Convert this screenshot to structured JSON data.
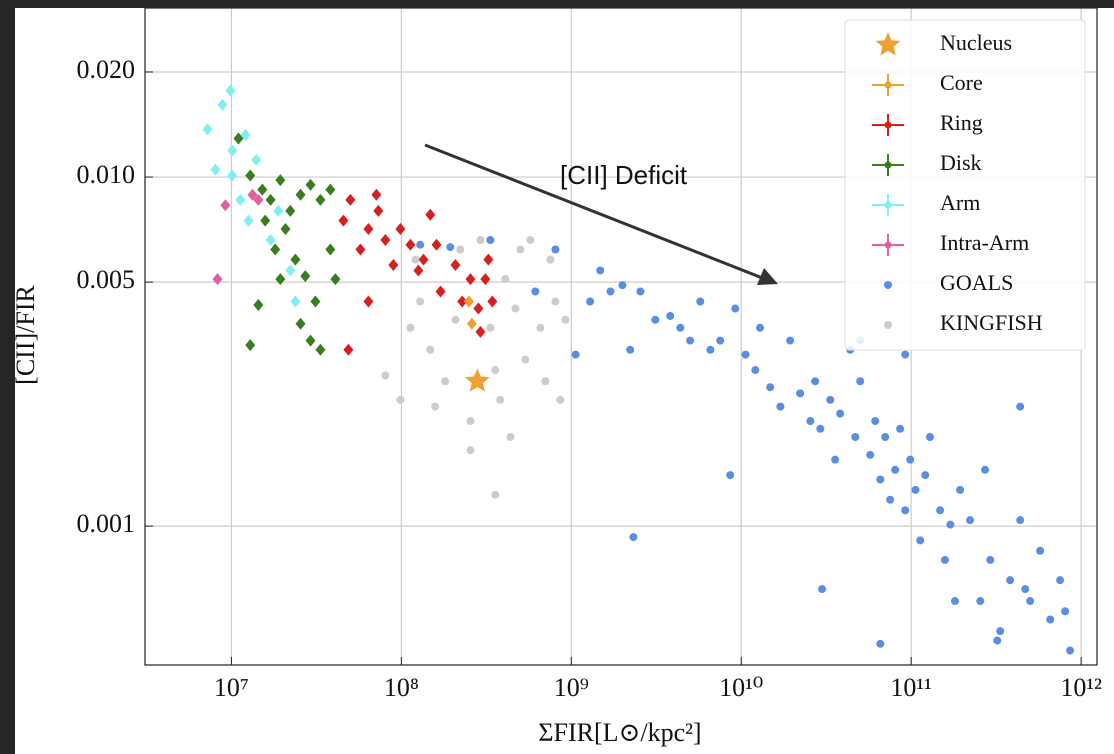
{
  "chart_data": {
    "type": "scatter",
    "xlabel": "ΣFIR[L⊙/kpc²]",
    "ylabel": "[CII]/FIR",
    "annotation": "[CII] Deficit",
    "xscale": "log",
    "yscale": "log",
    "grid": true,
    "legend": "upper right",
    "xlim": [
      3100000.0,
      1240000000000.0
    ],
    "ylim": [
      0.0004,
      0.0305
    ],
    "xticks": [
      {
        "value": 10000000.0,
        "label": "10⁷"
      },
      {
        "value": 100000000.0,
        "label": "10⁸"
      },
      {
        "value": 1000000000.0,
        "label": "10⁹"
      },
      {
        "value": 10000000000.0,
        "label": "10¹⁰"
      },
      {
        "value": 100000000000.0,
        "label": "10¹¹"
      },
      {
        "value": 1000000000000.0,
        "label": "10¹²"
      }
    ],
    "yticks": [
      {
        "value": 0.02,
        "label": "0.020"
      },
      {
        "value": 0.01,
        "label": "0.010"
      },
      0.005,
      0.001
    ],
    "series": [
      {
        "name": "Nucleus",
        "color": "#f0a030",
        "marker": "star",
        "x": [
          280000000.0
        ],
        "values": [
          0.0026
        ]
      },
      {
        "name": "Core",
        "color": "#f0a030",
        "marker": "errorbar",
        "x": [
          260000000.0,
          250000000.0
        ],
        "values": [
          0.0038,
          0.0044
        ]
      },
      {
        "name": "Ring",
        "color": "#d62020",
        "marker": "errorbar",
        "x": [
          45600000.0,
          50100000.0,
          57400000.0,
          64000000.0,
          73200000.0,
          71300000.0,
          64000000.0,
          48800000.0,
          80500000.0,
          89700000.0,
          98700000.0,
          113000000.0,
          126000000.0,
          135000000.0,
          148000000.0,
          161000000.0,
          170000000.0,
          208000000.0,
          228000000.0,
          255000000.0,
          284000000.0,
          312000000.0,
          325000000.0,
          343000000.0,
          292000000.0
        ],
        "values": [
          0.0075,
          0.0086,
          0.0062,
          0.0071,
          0.008,
          0.0089,
          0.0044,
          0.0032,
          0.0066,
          0.0056,
          0.0071,
          0.0064,
          0.0054,
          0.0058,
          0.0078,
          0.0064,
          0.0047,
          0.0056,
          0.0044,
          0.0051,
          0.0042,
          0.0051,
          0.0058,
          0.0044,
          0.0036
        ]
      },
      {
        "name": "Disk",
        "color": "#3a7d1e",
        "marker": "errorbar",
        "x": [
          11000000.0,
          12900000.0,
          15200000.0,
          17000000.0,
          19400000.0,
          22200000.0,
          25500000.0,
          29200000.0,
          33400000.0,
          38200000.0,
          14400000.0,
          12900000.0,
          18100000.0,
          20800000.0,
          23800000.0,
          27200000.0,
          31200000.0,
          33400000.0,
          25500000.0,
          29200000.0,
          38200000.0,
          40900000.0,
          19400000.0,
          15800000.0
        ],
        "values": [
          0.0129,
          0.0101,
          0.0092,
          0.0086,
          0.0098,
          0.008,
          0.0089,
          0.0095,
          0.0086,
          0.0092,
          0.0043,
          0.0033,
          0.0062,
          0.0071,
          0.0058,
          0.0052,
          0.0044,
          0.0032,
          0.0038,
          0.0034,
          0.0062,
          0.0051,
          0.0051,
          0.0075
        ]
      },
      {
        "name": "Arm",
        "color": "#7ff0f0",
        "marker": "errorbar",
        "x": [
          7230000.0,
          8050000.0,
          8850000.0,
          9870000.0,
          10100000.0,
          11300000.0,
          12600000.0,
          14000000.0,
          15200000.0,
          17000000.0,
          18900000.0,
          22200000.0,
          23800000.0,
          10100000.0,
          12100000.0
        ],
        "values": [
          0.0137,
          0.0105,
          0.0161,
          0.0177,
          0.0119,
          0.0086,
          0.0075,
          0.0112,
          0.0092,
          0.0066,
          0.008,
          0.0054,
          0.0044,
          0.0101,
          0.0132
        ]
      },
      {
        "name": "Intra-Arm",
        "color": "#e060a0",
        "marker": "errorbar",
        "x": [
          9220000.0,
          13300000.0,
          14400000.0,
          8280000.0
        ],
        "values": [
          0.0083,
          0.0089,
          0.0086,
          0.0051
        ]
      },
      {
        "name": "GOALS",
        "color": "#5b8ee0",
        "marker": "dot",
        "x": [
          129000000.0,
          194000000.0,
          334000000.0,
          614000000.0,
          806000000.0,
          1060000000.0,
          1290000000.0,
          1480000000.0,
          1700000000.0,
          2000000000.0,
          2220000000.0,
          2550000000.0,
          3120000000.0,
          3820000000.0,
          4380000000.0,
          5000000000.0,
          5740000000.0,
          6580000000.0,
          7520000000.0,
          8610000000.0,
          9220000000.0,
          10600000000.0,
          12100000000.0,
          12900000000.0,
          14800000000.0,
          17000000000.0,
          19400000000.0,
          22200000000.0,
          25500000000.0,
          27200000000.0,
          29200000000.0,
          33400000000.0,
          35700000000.0,
          38200000000.0,
          43800000000.0,
          46900000000.0,
          50100000000.0,
          57400000000.0,
          61400000000.0,
          65800000000.0,
          70300000000.0,
          75200000000.0,
          80500000000.0,
          86100000000.0,
          92200000000.0,
          98700000000.0,
          106000000000.0,
          113000000000.0,
          121000000000.0,
          129000000000.0,
          148000000000.0,
          158000000000.0,
          170000000000.0,
          194000000000.0,
          222000000000.0,
          255000000000.0,
          272000000000.0,
          292000000000.0,
          334000000000.0,
          382000000000.0,
          438000000000.0,
          438000000000.0,
          501000000000.0,
          574000000000.0,
          658000000000.0,
          752000000000.0,
          861000000000.0,
          469000000000.0,
          29900000000.0,
          2320000000.0,
          65800000000.0,
          181000000000.0,
          321000000000.0,
          805000000000.0,
          92200000000.0,
          50100000000.0
        ],
        "values": [
          0.0064,
          0.0063,
          0.0066,
          0.0047,
          0.0062,
          0.0031,
          0.0044,
          0.0054,
          0.0047,
          0.0049,
          0.0032,
          0.0047,
          0.0039,
          0.004,
          0.0037,
          0.0034,
          0.0044,
          0.0032,
          0.0034,
          0.0014,
          0.0042,
          0.0031,
          0.0028,
          0.0037,
          0.0025,
          0.0022,
          0.0034,
          0.0024,
          0.002,
          0.0026,
          0.0019,
          0.0023,
          0.00155,
          0.0021,
          0.0032,
          0.0018,
          0.0026,
          0.0016,
          0.002,
          0.00136,
          0.0018,
          0.00119,
          0.00145,
          0.0019,
          0.00111,
          0.00155,
          0.00127,
          0.00091,
          0.0014,
          0.0018,
          0.00111,
          0.0008,
          0.00101,
          0.00127,
          0.00104,
          0.00061,
          0.00145,
          0.0008,
          0.0005,
          0.0007,
          0.00104,
          0.0022,
          0.00061,
          0.00085,
          0.00054,
          0.0007,
          0.00044,
          0.00066,
          0.00066,
          0.00093,
          0.00046,
          0.00061,
          0.00047,
          0.00057,
          0.0031,
          0.0034
        ]
      },
      {
        "name": "KINGFISH",
        "color": "#cccccc",
        "marker": "dot",
        "x": [
          80500000.0,
          98700000.0,
          113000000.0,
          129000000.0,
          148000000.0,
          170000000.0,
          181000000.0,
          208000000.0,
          222000000.0,
          255000000.0,
          292000000.0,
          334000000.0,
          357000000.0,
          382000000.0,
          409000000.0,
          469000000.0,
          501000000.0,
          536000000.0,
          574000000.0,
          658000000.0,
          703000000.0,
          806000000.0,
          861000000.0,
          357000000.0,
          255000000.0,
          438000000.0,
          158000000.0,
          121000000.0,
          752000000.0,
          922000000.0
        ],
        "values": [
          0.0027,
          0.0023,
          0.0037,
          0.0044,
          0.0032,
          0.0047,
          0.0026,
          0.0039,
          0.0062,
          0.002,
          0.0066,
          0.0037,
          0.0028,
          0.0023,
          0.0051,
          0.0042,
          0.0062,
          0.003,
          0.0066,
          0.0037,
          0.0026,
          0.0044,
          0.0023,
          0.00123,
          0.00165,
          0.0018,
          0.0022,
          0.0058,
          0.0058,
          0.0039
        ]
      }
    ]
  }
}
